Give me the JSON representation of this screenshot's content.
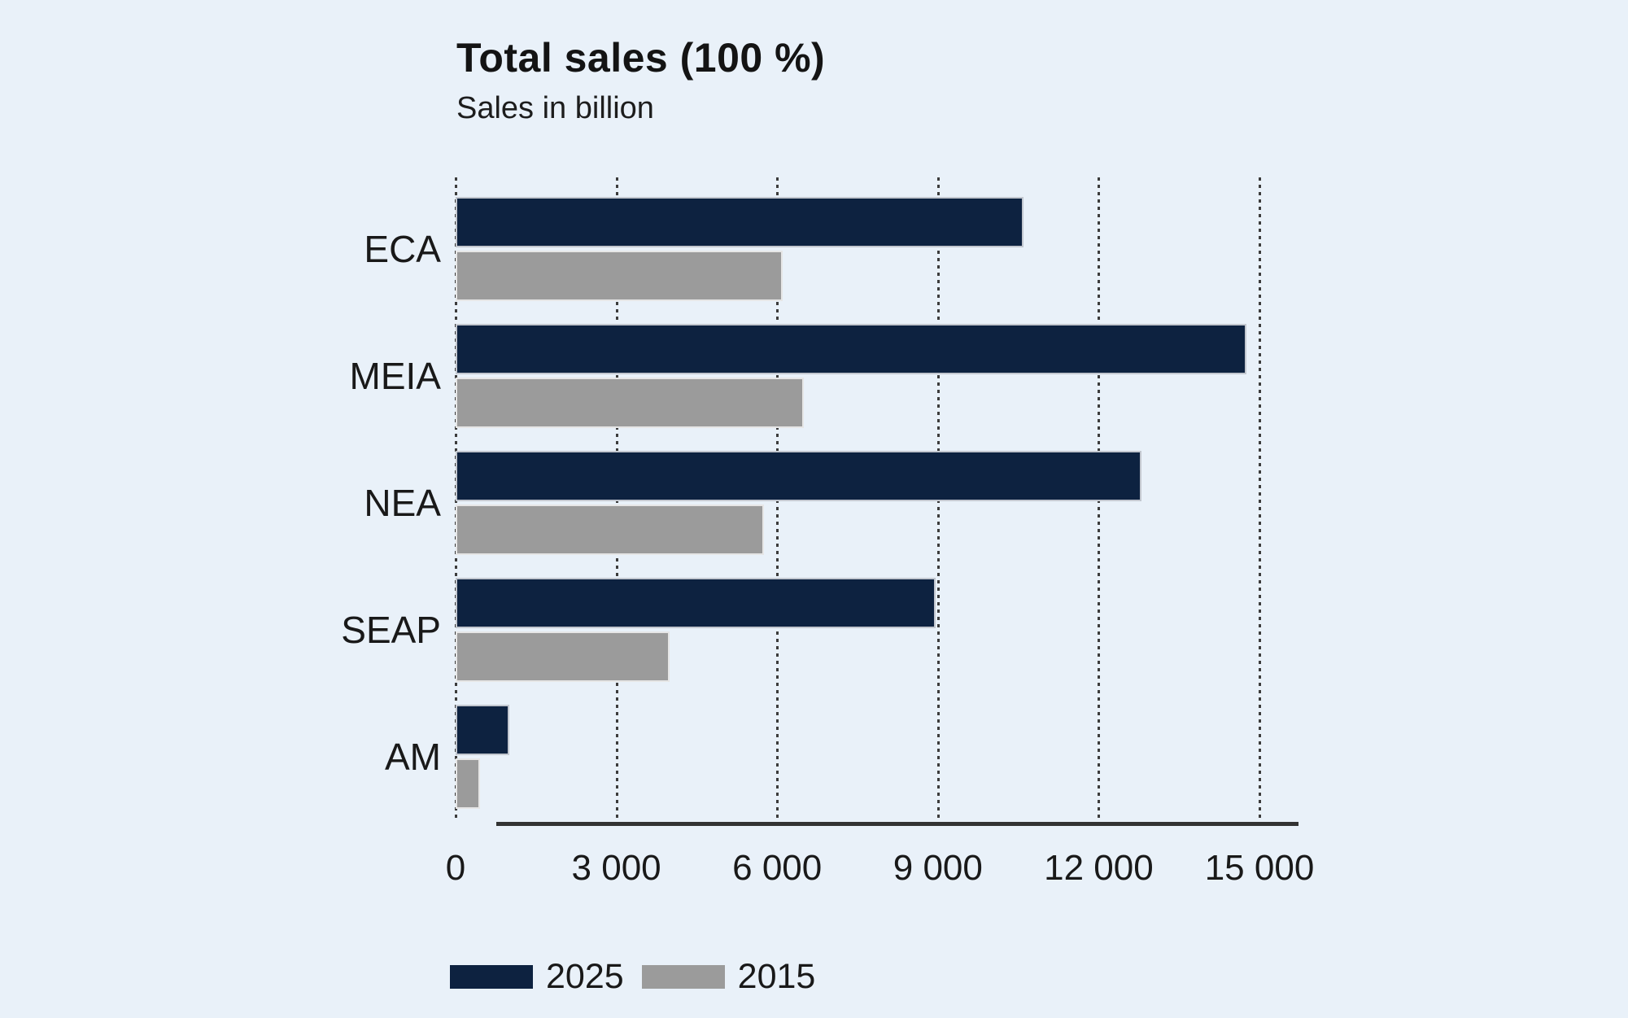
{
  "title": "Total sales (100 %)",
  "subtitle": "Sales in billion",
  "colors": {
    "background": "#e9f1f9",
    "bar_2025": "#0d2240",
    "bar_2015": "#9b9b9b",
    "axis": "#333333",
    "text": "#191919"
  },
  "legend": [
    {
      "label": "2025",
      "color_key": "bar_2025"
    },
    {
      "label": "2015",
      "color_key": "bar_2015"
    }
  ],
  "chart_data": {
    "type": "bar",
    "orientation": "horizontal",
    "title": "Total sales (100 %)",
    "subtitle": "Sales in billion",
    "categories": [
      "ECA",
      "MEIA",
      "NEA",
      "SEAP",
      "AM"
    ],
    "series": [
      {
        "name": "2025",
        "values": [
          10600,
          14750,
          12800,
          8950,
          1000
        ]
      },
      {
        "name": "2015",
        "values": [
          6100,
          6500,
          5750,
          4000,
          450
        ]
      }
    ],
    "xlabel": "",
    "ylabel": "",
    "xlim": [
      0,
      15000
    ],
    "xticks": [
      0,
      3000,
      6000,
      9000,
      12000,
      15000
    ],
    "xtick_labels": [
      "0",
      "3 000",
      "6 000",
      "9 000",
      "12 000",
      "15 000"
    ],
    "grid": "vertical-dotted",
    "legend_position": "bottom-left"
  }
}
